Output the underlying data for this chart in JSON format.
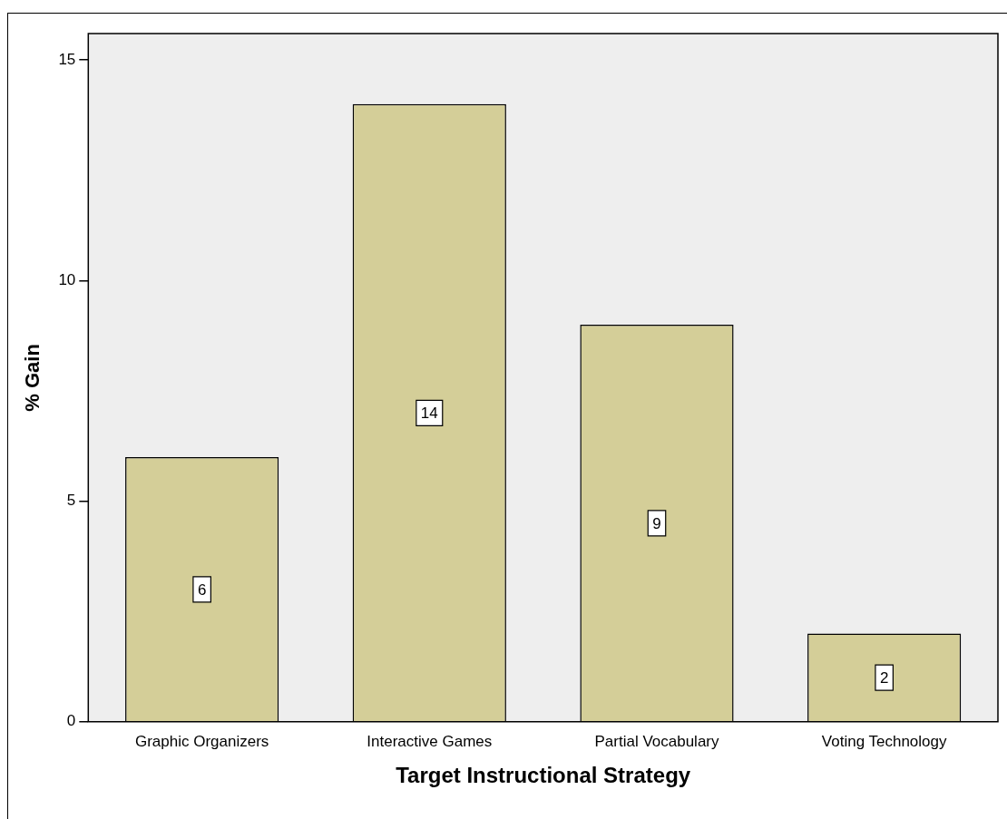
{
  "chart_data": {
    "type": "bar",
    "xlabel": "Target Instructional Strategy",
    "ylabel": "% Gain",
    "categories": [
      "Graphic Organizers",
      "Interactive Games",
      "Partial Vocabulary",
      "Voting Technology"
    ],
    "values": [
      6,
      14,
      9,
      2
    ],
    "color": "#d4ce98",
    "ylim": [
      0,
      15.6
    ],
    "yticks": [
      0,
      5,
      10,
      15
    ],
    "grid": false,
    "legend": false,
    "data_labels": true
  }
}
